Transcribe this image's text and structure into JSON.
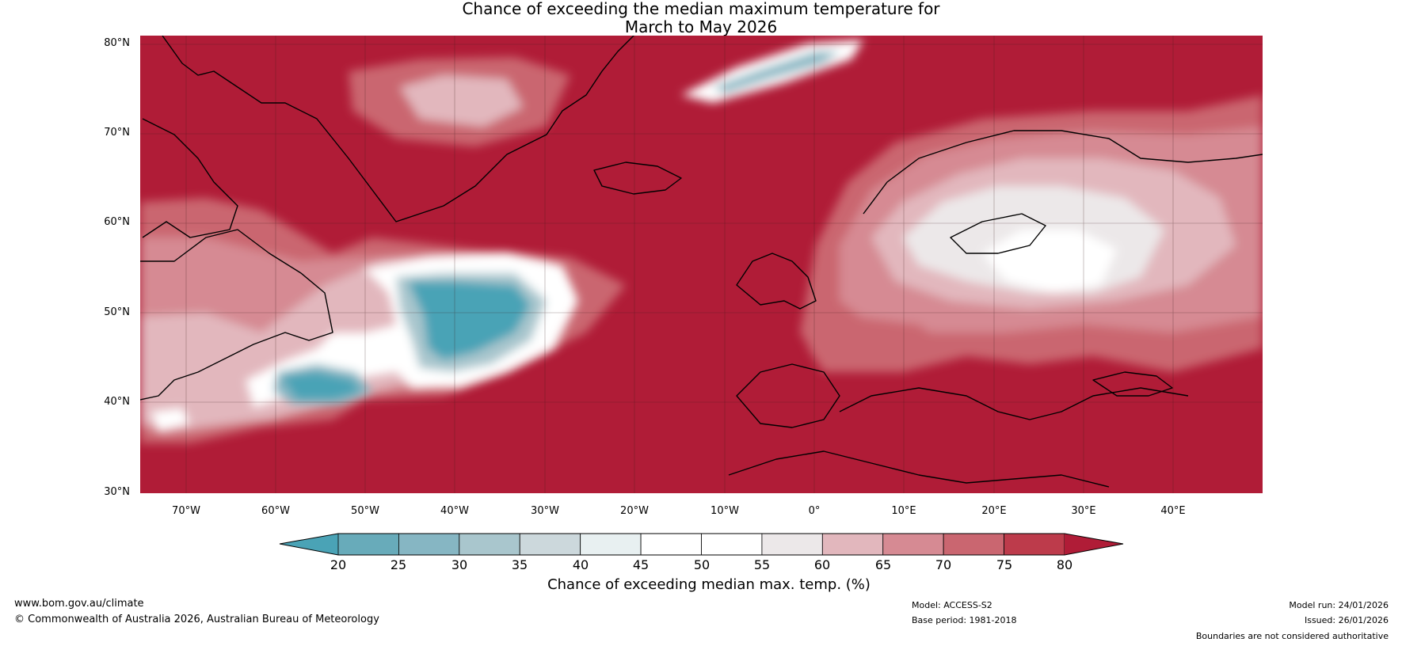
{
  "title": {
    "line1": "Chance of exceeding the median maximum temperature for",
    "line2": "March to May 2026"
  },
  "latitude_labels": [
    "80°N",
    "70°N",
    "60°N",
    "50°N",
    "40°N",
    "30°N"
  ],
  "longitude_labels": [
    "70°W",
    "60°W",
    "50°W",
    "40°W",
    "30°W",
    "20°W",
    "10°W",
    "0°",
    "10°E",
    "20°E",
    "30°E",
    "40°E"
  ],
  "colorbar": {
    "title": "Chance of exceeding median max. temp. (%)",
    "tick_labels": [
      "20",
      "25",
      "30",
      "35",
      "40",
      "45",
      "50",
      "55",
      "60",
      "65",
      "70",
      "75",
      "80"
    ],
    "colors": [
      "#4aa3b6",
      "#68abba",
      "#86b6c3",
      "#a9c6cd",
      "#ccd8dc",
      "#e8f0f1",
      "#ffffff",
      "#ffffff",
      "#ece8e9",
      "#e2b7bd",
      "#d68a93",
      "#ca6670",
      "#bd3b4b",
      "#b01c37"
    ]
  },
  "footer": {
    "website": "www.bom.gov.au/climate",
    "copyright": "© Commonwealth of Australia 2026, Australian Bureau of Meteorology",
    "model": "Model: ACCESS-S2",
    "base_period": "Base period: 1981-2018",
    "model_run": "Model run: 24/01/2026",
    "issued": "Issued: 26/01/2026",
    "disclaimer": "Boundaries are not considered authoritative"
  }
}
